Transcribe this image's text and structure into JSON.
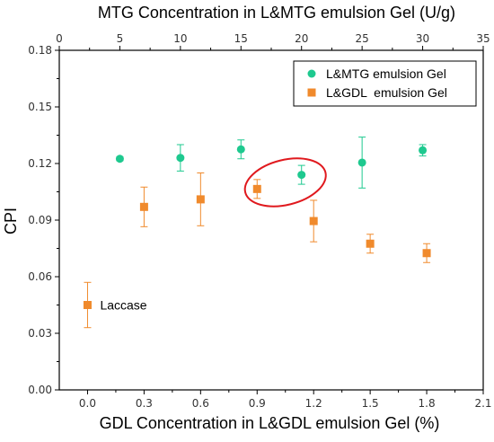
{
  "chart_data": {
    "type": "scatter",
    "top_axis_title": "MTG Concentration in L&MTG emulsion Gel (U/g)",
    "xlabel": "GDL Concentration in L&GDL emulsion Gel (%)",
    "ylabel": "CPI",
    "xlim": [
      -0.15,
      2.1
    ],
    "ylim": [
      0.0,
      0.18
    ],
    "top_xlim": [
      0,
      35
    ],
    "x_ticks": [
      "0.0",
      "0.3",
      "0.6",
      "0.9",
      "1.2",
      "1.5",
      "1.8",
      "2.1"
    ],
    "y_ticks": [
      "0.00",
      "0.03",
      "0.06",
      "0.09",
      "0.12",
      "0.15",
      "0.18"
    ],
    "top_ticks": [
      "0",
      "5",
      "10",
      "15",
      "20",
      "25",
      "30",
      "35"
    ],
    "legend_position": "top-right",
    "grid": false,
    "series": [
      {
        "name": "L&MTG emulsion Gel",
        "axis": "top",
        "marker": "circle",
        "color": "#1ec98f",
        "x": [
          5,
          10,
          15,
          20,
          25,
          30
        ],
        "y": [
          0.1225,
          0.123,
          0.1275,
          0.114,
          0.1205,
          0.127
        ],
        "err": [
          0.001,
          0.007,
          0.005,
          0.005,
          0.0135,
          0.003
        ]
      },
      {
        "name": "L&GDL  emulsion Gel",
        "axis": "bottom",
        "marker": "square",
        "color": "#f08a2c",
        "x": [
          0.0,
          0.3,
          0.6,
          0.9,
          1.2,
          1.5,
          1.8
        ],
        "y": [
          0.045,
          0.097,
          0.101,
          0.1065,
          0.0895,
          0.0775,
          0.0725
        ],
        "err": [
          0.012,
          0.0105,
          0.014,
          0.005,
          0.011,
          0.005,
          0.005
        ]
      }
    ],
    "annotations": [
      {
        "text": "Laccase",
        "x": 0.0,
        "y": 0.045
      }
    ],
    "highlight": {
      "shape": "ellipse",
      "color": "#e0191e",
      "around_x": [
        0.9,
        1.2
      ],
      "around_y": [
        0.106,
        0.114
      ]
    }
  }
}
